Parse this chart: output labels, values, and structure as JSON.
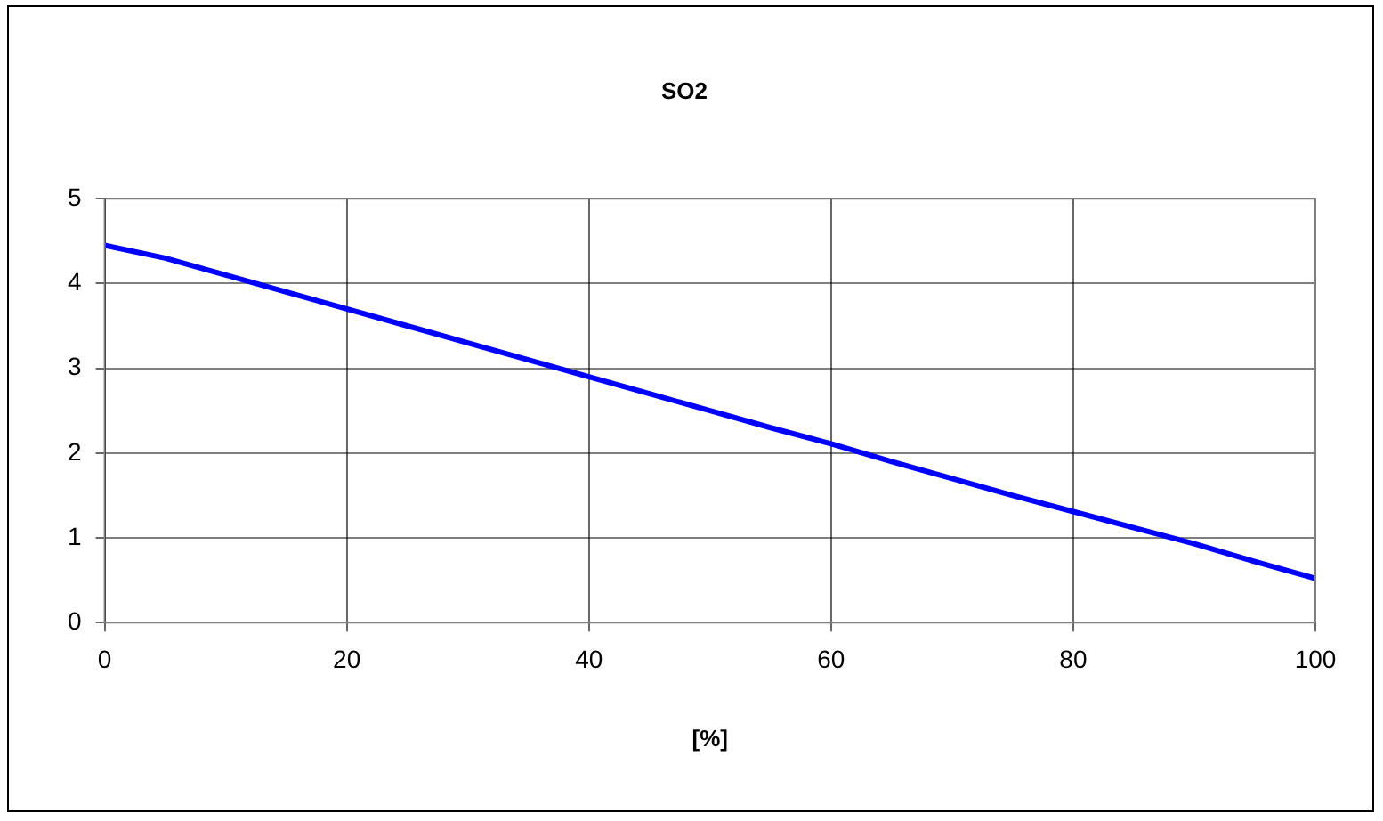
{
  "chart_data": {
    "type": "line",
    "title": "SO2",
    "xlabel": "[%]",
    "x": [
      0,
      5,
      10,
      15,
      20,
      25,
      30,
      35,
      40,
      45,
      50,
      55,
      60,
      65,
      70,
      75,
      80,
      85,
      90,
      95,
      100
    ],
    "series": [
      {
        "color": "#0000ff",
        "values": [
          4.45,
          4.3,
          4.1,
          3.9,
          3.7,
          3.5,
          3.3,
          3.1,
          2.9,
          2.7,
          2.5,
          2.3,
          2.11,
          1.9,
          1.7,
          1.5,
          1.31,
          1.12,
          0.93,
          0.72,
          0.52
        ]
      }
    ],
    "xlim": [
      0,
      100
    ],
    "xticks": [
      0,
      20,
      40,
      60,
      80,
      100
    ],
    "ylim": [
      0,
      5
    ],
    "yticks": [
      0,
      1,
      2,
      3,
      4,
      5
    ],
    "grid": true,
    "legend": false,
    "marker": "none",
    "line_style": "solid"
  }
}
